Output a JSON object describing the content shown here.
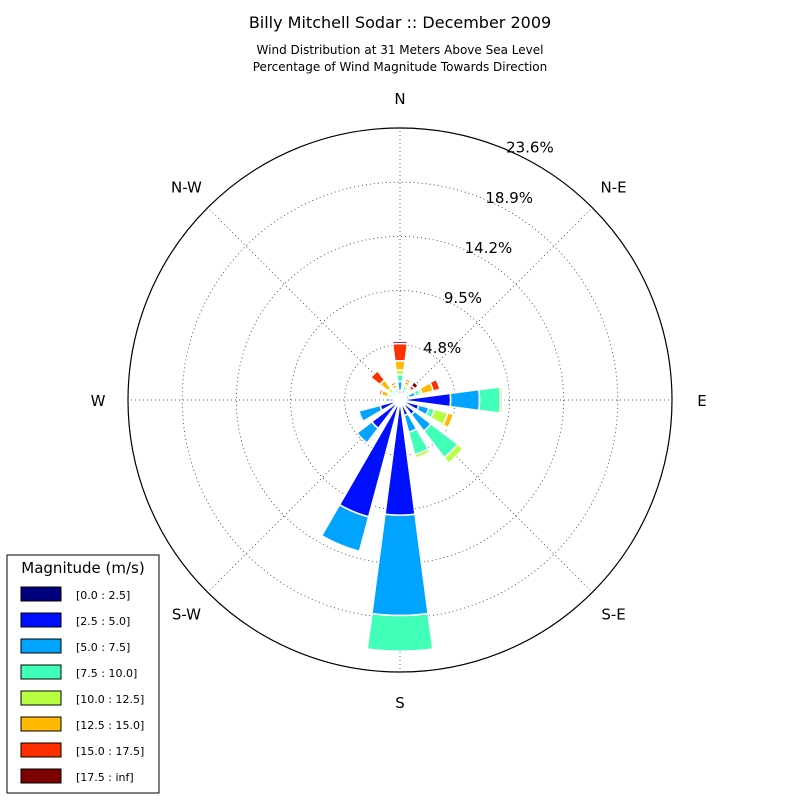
{
  "chart_data": {
    "type": "windrose",
    "title": "Billy Mitchell Sodar :: December 2009",
    "subtitle_line1": "Wind Distribution at 31 Meters Above Sea Level",
    "subtitle_line2": "Percentage of Wind Magnitude Towards Direction",
    "direction_labels": [
      "N",
      "N-E",
      "E",
      "S-E",
      "S",
      "S-W",
      "W",
      "N-W"
    ],
    "ring_labels": [
      "4.8%",
      "9.5%",
      "14.2%",
      "18.9%",
      "23.6%"
    ],
    "ring_values": [
      4.8,
      9.5,
      14.2,
      18.9,
      23.6
    ],
    "r_max": 23.6,
    "legend": {
      "title": "Magnitude (m/s)",
      "bins": [
        "[0.0 : 2.5]",
        "[2.5 : 5.0]",
        "[5.0 : 7.5]",
        "[7.5 : 10.0]",
        "[10.0 : 12.5]",
        "[12.5 : 15.0]",
        "[15.0 : 17.5]",
        "[17.5 : inf]"
      ],
      "colors": [
        "#00007f",
        "#0010ff",
        "#00a4ff",
        "#40ffb7",
        "#b7ff40",
        "#ffb900",
        "#ff3000",
        "#7f0000"
      ]
    },
    "sector_width_deg": 15,
    "sectors": [
      {
        "direction_deg": 0,
        "values": [
          0.3,
          0.5,
          0.8,
          0.6,
          0.4,
          0.8,
          1.5,
          0.2
        ]
      },
      {
        "direction_deg": 22.5,
        "values": [
          0.3,
          0.3,
          0.3,
          0.3,
          0.2,
          0.3,
          0.2,
          0.1
        ]
      },
      {
        "direction_deg": 45,
        "values": [
          0.3,
          0.3,
          0.2,
          0.2,
          0.1,
          0.2,
          0.3,
          0.4
        ]
      },
      {
        "direction_deg": 67.5,
        "values": [
          0.3,
          0.5,
          0.6,
          0.4,
          0.2,
          1.0,
          0.6,
          0
        ]
      },
      {
        "direction_deg": 90,
        "values": [
          0.4,
          4.0,
          2.5,
          1.8,
          0.2,
          0.1,
          0,
          0
        ]
      },
      {
        "direction_deg": 112.5,
        "values": [
          0.4,
          1.3,
          0.9,
          0.5,
          1.2,
          0.5,
          0,
          0
        ]
      },
      {
        "direction_deg": 135,
        "values": [
          0.4,
          1.2,
          1.8,
          2.9,
          0.6,
          0,
          0,
          0
        ]
      },
      {
        "direction_deg": 157.5,
        "values": [
          0.4,
          1.0,
          1.5,
          2.0,
          0.3,
          0,
          0,
          0
        ]
      },
      {
        "direction_deg": 180,
        "values": [
          0.5,
          9.5,
          8.7,
          3.1,
          0,
          0,
          0,
          0
        ]
      },
      {
        "direction_deg": 202.5,
        "values": [
          0.5,
          10.0,
          3.1,
          0,
          0,
          0,
          0,
          0
        ]
      },
      {
        "direction_deg": 225,
        "values": [
          0.5,
          2.6,
          1.6,
          0,
          0,
          0,
          0,
          0
        ]
      },
      {
        "direction_deg": 247.5,
        "values": [
          0.4,
          1.4,
          1.9,
          0,
          0,
          0,
          0,
          0
        ]
      },
      {
        "direction_deg": 270,
        "values": [
          0.3,
          0.6,
          0.3,
          0,
          0,
          0,
          0,
          0
        ]
      },
      {
        "direction_deg": 292.5,
        "values": [
          0.2,
          0.2,
          0.2,
          0.2,
          0.3,
          0.6,
          0.2,
          0
        ]
      },
      {
        "direction_deg": 315,
        "values": [
          0.2,
          0.2,
          0.2,
          0.3,
          0.4,
          0.9,
          1.0,
          0
        ]
      },
      {
        "direction_deg": 337.5,
        "values": [
          0.2,
          0.2,
          0.2,
          0.3,
          0.2,
          0.3,
          0.2,
          0
        ]
      }
    ]
  }
}
